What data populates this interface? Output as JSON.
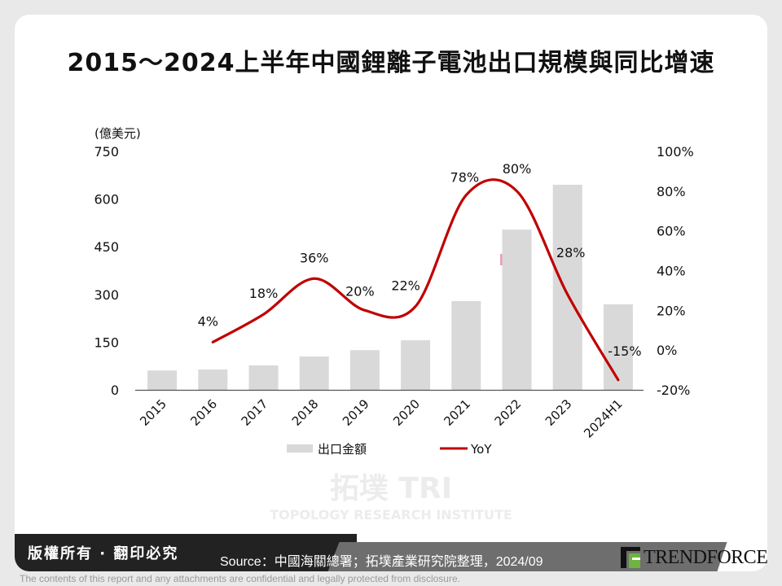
{
  "title": "2015～2024上半年中國鋰離子電池出口規模與同比增速",
  "chart_data": {
    "type": "bar+line",
    "title": "2015～2024上半年中國鋰離子電池出口規模與同比增速",
    "y_left_unit": "(億美元)",
    "categories": [
      "2015",
      "2016",
      "2017",
      "2018",
      "2019",
      "2020",
      "2021",
      "2022",
      "2023",
      "2024H1"
    ],
    "y_left": {
      "min": 0,
      "max": 750,
      "ticks": [
        0,
        150,
        300,
        450,
        600,
        750
      ]
    },
    "y_right": {
      "min": -20,
      "max": 100,
      "ticks": [
        "-20%",
        "0%",
        "20%",
        "40%",
        "60%",
        "80%",
        "100%"
      ],
      "tick_values": [
        -20,
        0,
        20,
        40,
        60,
        80,
        100
      ]
    },
    "series": [
      {
        "name": "出口金額",
        "type": "bar",
        "axis": "left",
        "color": "#d9d9d9",
        "values": [
          61,
          64,
          77,
          105,
          125,
          156,
          279,
          504,
          645,
          269
        ]
      },
      {
        "name": "YoY",
        "type": "line",
        "axis": "right",
        "color": "#c00000",
        "values": [
          null,
          4,
          18,
          36,
          20,
          22,
          78,
          80,
          28,
          -15
        ],
        "labels": [
          "",
          "4%",
          "18%",
          "36%",
          "20%",
          "22%",
          "78%",
          "80%",
          "28%",
          "-15%"
        ]
      }
    ],
    "grid": false,
    "legend_position": "bottom"
  },
  "watermark": {
    "logo_text": "拓墣 TRI",
    "subtitle": "TOPOLOGY RESEARCH INSTITUTE"
  },
  "footer": {
    "copyright": "版權所有 · 翻印必究",
    "source": "Source：中國海關總署；拓墣產業研究院整理，2024/09",
    "brand": "TRENDFORCE",
    "disclaimer": "The contents of this report and any attachments are confidential and legally protected from disclosure."
  }
}
